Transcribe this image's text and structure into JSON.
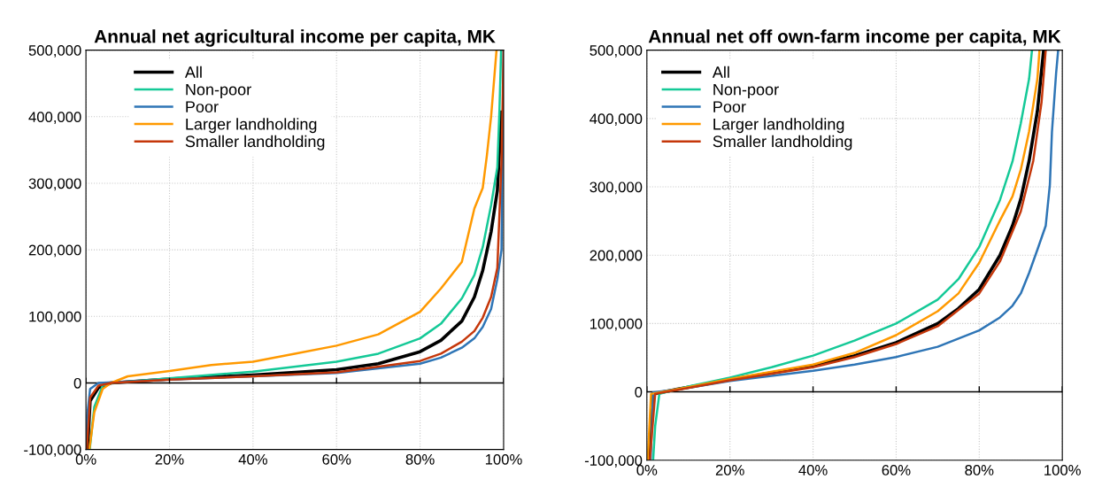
{
  "chart_data": [
    {
      "type": "line",
      "title": "Annual net agricultural income per capita, MK",
      "xlim": [
        0,
        100
      ],
      "ylim": [
        -100000,
        500000
      ],
      "xticks": [
        {
          "value": 0,
          "label": "0%"
        },
        {
          "value": 20,
          "label": "20%"
        },
        {
          "value": 40,
          "label": "40%"
        },
        {
          "value": 60,
          "label": "60%"
        },
        {
          "value": 80,
          "label": "80%"
        },
        {
          "value": 100,
          "label": "100%"
        }
      ],
      "yticks": [
        {
          "value": -100000,
          "label": "-100,000"
        },
        {
          "value": 0,
          "label": "0"
        },
        {
          "value": 100000,
          "label": "100,000"
        },
        {
          "value": 200000,
          "label": "200,000"
        },
        {
          "value": 300000,
          "label": "300,000"
        },
        {
          "value": 400000,
          "label": "400,000"
        },
        {
          "value": 500000,
          "label": "500,000"
        }
      ],
      "grid": true,
      "legend": "top left",
      "marker": "none",
      "line_style": "solid",
      "series": [
        {
          "name": "All",
          "color": "#000000",
          "x": [
            0.4,
            1,
            3,
            6,
            20,
            40,
            60,
            70,
            80,
            85,
            90,
            93,
            95,
            97,
            98.5,
            99.5
          ],
          "values": [
            -100000,
            -27000,
            -7000,
            0,
            6000,
            12000,
            20000,
            29000,
            47000,
            64000,
            93000,
            129000,
            169000,
            227000,
            289000,
            407000
          ]
        },
        {
          "name": "Non-poor",
          "color": "#14c997",
          "x": [
            0.9,
            2,
            4,
            6,
            20,
            40,
            60,
            70,
            80,
            85,
            90,
            93,
            95,
            97,
            98.5,
            99,
            99.4
          ],
          "values": [
            -100000,
            -36000,
            -4000,
            0,
            7000,
            17000,
            32000,
            44000,
            67000,
            89000,
            127000,
            162000,
            204000,
            267000,
            324000,
            409000,
            500000
          ]
        },
        {
          "name": "Poor",
          "color": "#2e75b6",
          "x": [
            0.1,
            0.3,
            1,
            3,
            20,
            40,
            60,
            80,
            85,
            90,
            93,
            95,
            97,
            98.5,
            99.5,
            100
          ],
          "values": [
            -100000,
            -49000,
            -9000,
            0,
            5000,
            10000,
            15000,
            29000,
            38000,
            53000,
            67000,
            84000,
            111000,
            156000,
            200000,
            500000
          ]
        },
        {
          "name": "Larger landholding",
          "color": "#ff9900",
          "x": [
            0.8,
            2,
            4,
            6,
            10,
            20,
            30,
            40,
            50,
            60,
            70,
            80,
            85,
            87,
            90,
            93,
            95,
            96,
            97,
            98.3
          ],
          "values": [
            -100000,
            -44000,
            -9000,
            0,
            10000,
            18000,
            27000,
            32000,
            44000,
            56000,
            73000,
            107000,
            142000,
            158000,
            182000,
            262000,
            293000,
            342000,
            400000,
            500000
          ]
        },
        {
          "name": "Smaller landholding",
          "color": "#c5370a",
          "x": [
            0.2,
            1,
            3,
            6,
            20,
            40,
            60,
            80,
            85,
            90,
            93,
            95,
            97,
            98.5,
            99.5,
            100
          ],
          "values": [
            -100000,
            -22000,
            -4000,
            0,
            5000,
            10000,
            16000,
            33000,
            44000,
            62000,
            78000,
            98000,
            129000,
            173000,
            333000,
            500000
          ]
        }
      ]
    },
    {
      "type": "line",
      "title": "Annual net off own-farm income per capita, MK",
      "xlim": [
        0,
        100
      ],
      "ylim": [
        -100000,
        500000
      ],
      "xticks": [
        {
          "value": 0,
          "label": "0%"
        },
        {
          "value": 20,
          "label": "20%"
        },
        {
          "value": 40,
          "label": "40%"
        },
        {
          "value": 60,
          "label": "60%"
        },
        {
          "value": 80,
          "label": "80%"
        },
        {
          "value": 100,
          "label": "100%"
        }
      ],
      "yticks": [
        {
          "value": -100000,
          "label": "-100,000"
        },
        {
          "value": 0,
          "label": "0"
        },
        {
          "value": 100000,
          "label": "100,000"
        },
        {
          "value": 200000,
          "label": "200,000"
        },
        {
          "value": 300000,
          "label": "300,000"
        },
        {
          "value": 400000,
          "label": "400,000"
        },
        {
          "value": 500000,
          "label": "500,000"
        }
      ],
      "grid": true,
      "legend": "top left",
      "marker": "none",
      "line_style": "solid",
      "series": [
        {
          "name": "All",
          "color": "#000000",
          "x": [
            0.5,
            1.5,
            10,
            20,
            40,
            50,
            60,
            70,
            75,
            80,
            85,
            88,
            90,
            92,
            94,
            95.5
          ],
          "values": [
            -100000,
            -3000,
            7000,
            18000,
            38000,
            53000,
            72000,
            100000,
            122000,
            150000,
            200000,
            243000,
            282000,
            338000,
            411000,
            500000
          ]
        },
        {
          "name": "Non-poor",
          "color": "#14c997",
          "x": [
            1.5,
            2,
            3,
            10,
            20,
            30,
            40,
            50,
            60,
            70,
            75,
            80,
            85,
            88,
            90,
            92,
            92.7
          ],
          "values": [
            -100000,
            -50000,
            -3000,
            8000,
            21000,
            36000,
            53000,
            75000,
            100000,
            135000,
            165000,
            212000,
            281000,
            337000,
            393000,
            458000,
            500000
          ]
        },
        {
          "name": "Poor",
          "color": "#2e75b6",
          "x": [
            0.9,
            1.5,
            10,
            20,
            40,
            50,
            60,
            70,
            80,
            85,
            88,
            90,
            92,
            94,
            96,
            97,
            97.5,
            98.5,
            99
          ],
          "values": [
            -100000,
            -1000,
            6000,
            16000,
            31000,
            40000,
            51000,
            66000,
            90000,
            109000,
            126000,
            144000,
            174000,
            208000,
            243000,
            303000,
            380000,
            466000,
            500000
          ]
        },
        {
          "name": "Larger landholding",
          "color": "#ff9900",
          "x": [
            0.2,
            1,
            10,
            20,
            40,
            50,
            60,
            70,
            75,
            80,
            85,
            88,
            90,
            92,
            94,
            94.5
          ],
          "values": [
            -100000,
            -3000,
            7000,
            19000,
            40000,
            57000,
            83000,
            118000,
            144000,
            189000,
            251000,
            286000,
            325000,
            381000,
            458000,
            500000
          ]
        },
        {
          "name": "Smaller landholding",
          "color": "#c5370a",
          "x": [
            0.7,
            2,
            20,
            40,
            50,
            60,
            70,
            80,
            85,
            90,
            93,
            95,
            96
          ],
          "values": [
            -100000,
            -3000,
            17000,
            36000,
            51000,
            70000,
            96000,
            144000,
            191000,
            264000,
            338000,
            424000,
            500000
          ]
        }
      ]
    }
  ]
}
